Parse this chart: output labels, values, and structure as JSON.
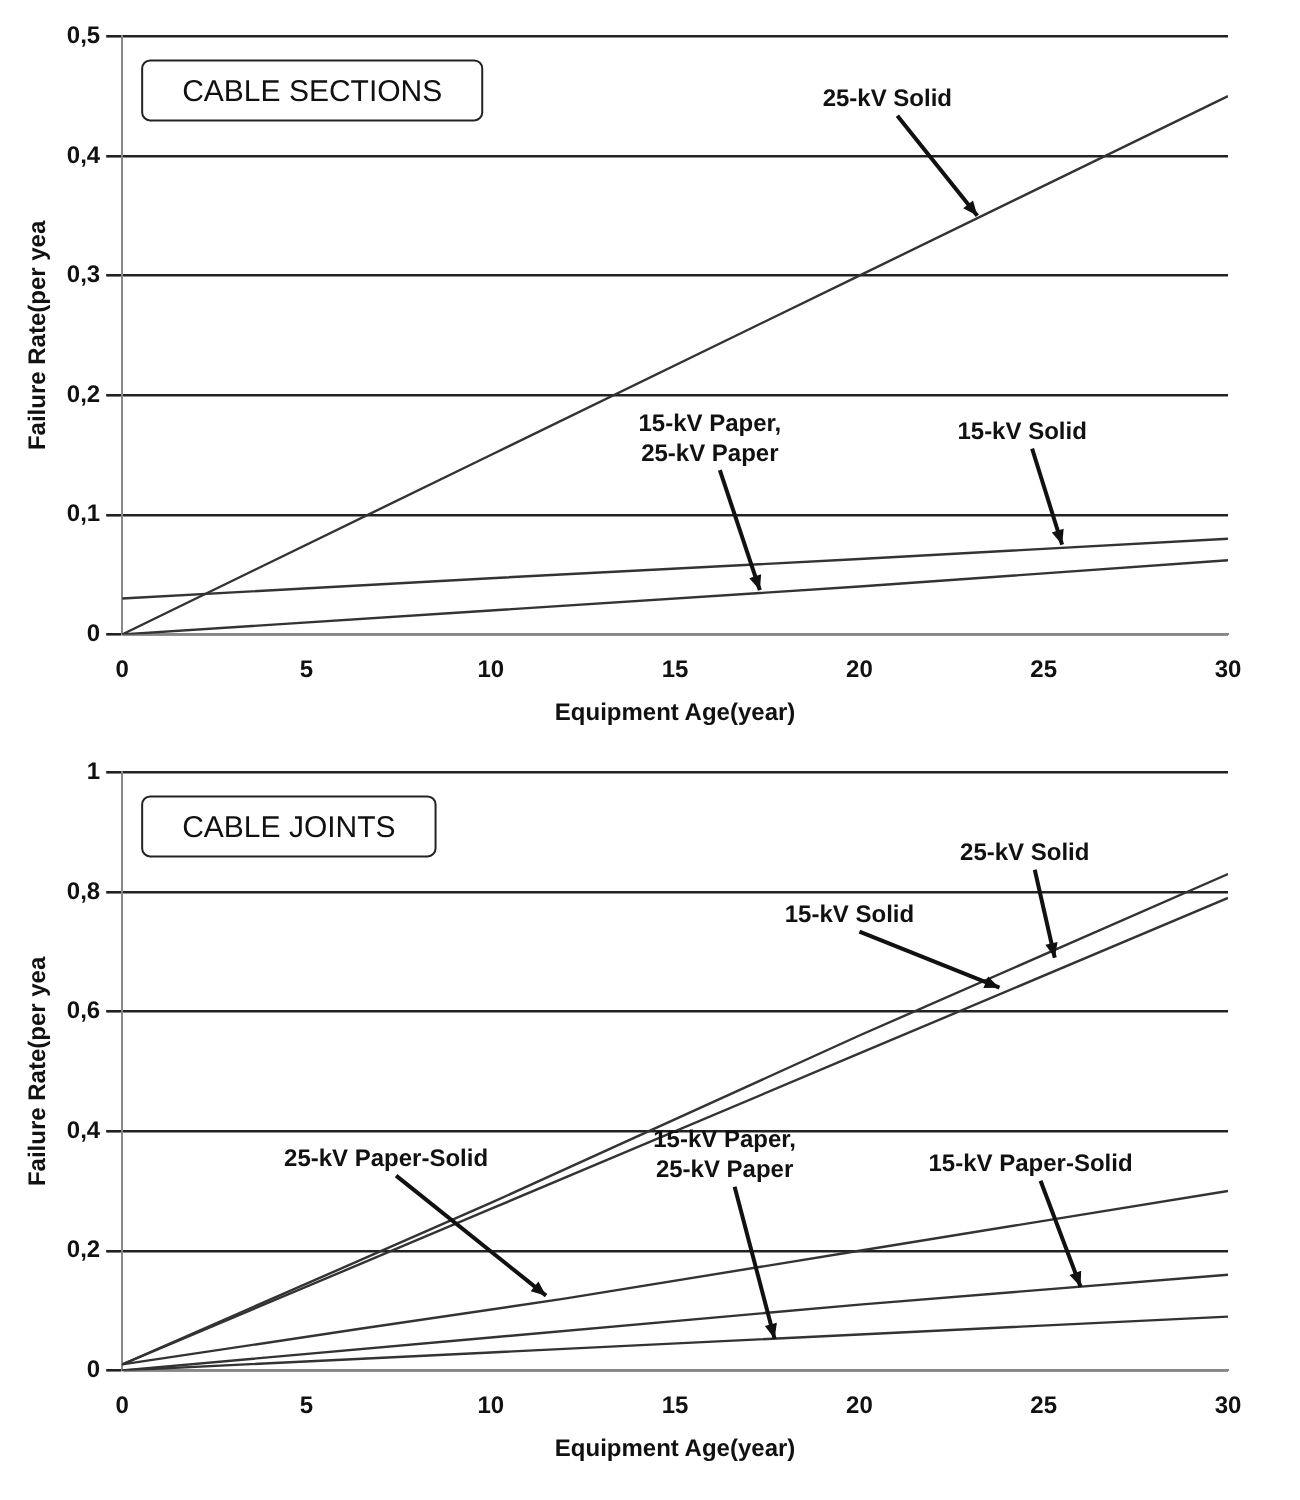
{
  "chart_data": [
    {
      "type": "line",
      "title": "CABLE SECTIONS",
      "xlabel": "Equipment Age(year)",
      "ylabel": "Failure Rate(per yea",
      "series": [
        {
          "color": "#333333",
          "x": [
            0,
            10,
            20,
            30
          ],
          "values": [
            0,
            0.15,
            0.3,
            0.45
          ]
        },
        {
          "color": "#333333",
          "x": [
            0,
            10,
            20,
            30
          ],
          "values": [
            0.03,
            0.047,
            0.063,
            0.08
          ]
        },
        {
          "color": "#333333",
          "x": [
            0,
            10,
            20,
            30
          ],
          "values": [
            0,
            0.02,
            0.04,
            0.062
          ]
        }
      ],
      "xlim": [
        0,
        30
      ],
      "xticks": [
        0,
        5,
        10,
        15,
        20,
        25,
        30
      ],
      "ylim": [
        0,
        0.5
      ],
      "yticks": [
        {
          "value": 0,
          "label": "0"
        },
        {
          "value": 0.1,
          "label": "0,1"
        },
        {
          "value": 0.2,
          "label": "0,2"
        },
        {
          "value": 0.3,
          "label": "0,3"
        },
        {
          "value": 0.4,
          "label": "0,4"
        },
        {
          "value": 0.5,
          "label": "0,5"
        }
      ],
      "grid": "y",
      "marker": "none",
      "line_style": "solid",
      "annotations": [
        {
          "text": "25-kV Solid",
          "x": 23.2,
          "y": 0.35
        },
        {
          "text": "15-kV Solid",
          "x": 25.5,
          "y": 0.075
        },
        {
          "text": "15-kV Paper,\n25-kV Paper",
          "x": 17.3,
          "y": 0.037
        }
      ]
    },
    {
      "type": "line",
      "title": "CABLE JOINTS",
      "xlabel": "Equipment Age(year)",
      "ylabel": "Failure Rate(per yea",
      "series": [
        {
          "color": "#333333",
          "x": [
            0,
            10,
            20,
            30
          ],
          "values": [
            0.01,
            0.28,
            0.56,
            0.83
          ]
        },
        {
          "color": "#333333",
          "x": [
            0,
            10,
            20,
            30
          ],
          "values": [
            0.01,
            0.27,
            0.53,
            0.79
          ]
        },
        {
          "color": "#333333",
          "x": [
            0,
            6.5,
            12,
            20,
            30
          ],
          "values": [
            0.01,
            0.07,
            0.12,
            0.2,
            0.3
          ]
        },
        {
          "color": "#333333",
          "x": [
            0,
            10,
            20,
            30
          ],
          "values": [
            0,
            0.055,
            0.11,
            0.16
          ]
        },
        {
          "color": "#333333",
          "x": [
            0,
            10,
            20,
            30
          ],
          "values": [
            0,
            0.03,
            0.06,
            0.09
          ]
        }
      ],
      "xlim": [
        0,
        30
      ],
      "xticks": [
        0,
        5,
        10,
        15,
        20,
        25,
        30
      ],
      "ylim": [
        0,
        1
      ],
      "yticks": [
        {
          "value": 0,
          "label": "0"
        },
        {
          "value": 0.2,
          "label": "0,2"
        },
        {
          "value": 0.4,
          "label": "0,4"
        },
        {
          "value": 0.6,
          "label": "0,6"
        },
        {
          "value": 0.8,
          "label": "0,8"
        },
        {
          "value": 1,
          "label": "1"
        }
      ],
      "grid": "y",
      "marker": "none",
      "line_style": "solid",
      "annotations": [
        {
          "text": "25-kV Solid",
          "x": 25.3,
          "y": 0.69
        },
        {
          "text": "15-kV Solid",
          "x": 23.8,
          "y": 0.64
        },
        {
          "text": "25-kV Paper-Solid",
          "x": 11.5,
          "y": 0.125
        },
        {
          "text": "15-kV Paper,\n25-kV Paper",
          "x": 17.7,
          "y": 0.053
        },
        {
          "text": "15-kV Paper-Solid",
          "x": 26,
          "y": 0.14
        }
      ]
    }
  ]
}
